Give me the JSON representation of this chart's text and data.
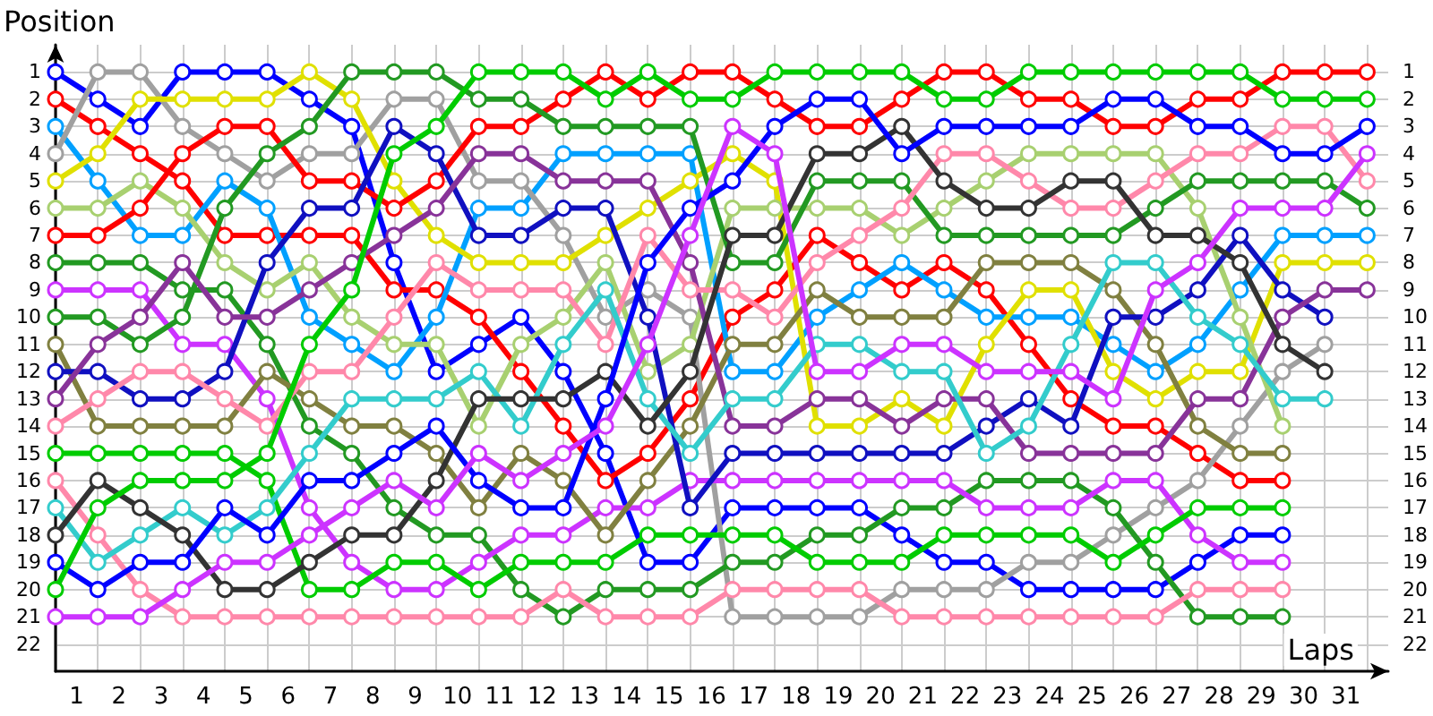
{
  "chart_data": {
    "type": "line",
    "ylabel": "Position",
    "xlabel": "Laps",
    "marker": "circle",
    "grid": true,
    "x": [
      0,
      1,
      2,
      3,
      4,
      5,
      6,
      7,
      8,
      9,
      10,
      11,
      12,
      13,
      14,
      15,
      16,
      17,
      18,
      19,
      20,
      21,
      22,
      23,
      24,
      25,
      26,
      27,
      28,
      29,
      30,
      31
    ],
    "xlim": [
      0,
      31.5
    ],
    "xticks": [
      {
        "value": 0,
        "label": null
      },
      {
        "value": 0.5,
        "label": "1"
      },
      {
        "value": 1,
        "label": null
      },
      {
        "value": 1.5,
        "label": "2"
      },
      {
        "value": 2,
        "label": null
      },
      {
        "value": 2.5,
        "label": "3"
      },
      {
        "value": 3,
        "label": null
      },
      {
        "value": 3.5,
        "label": "4"
      },
      {
        "value": 4,
        "label": null
      },
      {
        "value": 4.5,
        "label": "5"
      },
      {
        "value": 5,
        "label": null
      },
      {
        "value": 5.5,
        "label": "6"
      },
      {
        "value": 6,
        "label": null
      },
      {
        "value": 6.5,
        "label": "7"
      },
      {
        "value": 7,
        "label": null
      },
      {
        "value": 7.5,
        "label": "8"
      },
      {
        "value": 8,
        "label": null
      },
      {
        "value": 8.5,
        "label": "9"
      },
      {
        "value": 9,
        "label": null
      },
      {
        "value": 9.5,
        "label": "10"
      },
      {
        "value": 10,
        "label": null
      },
      {
        "value": 10.5,
        "label": "11"
      },
      {
        "value": 11,
        "label": null
      },
      {
        "value": 11.5,
        "label": "12"
      },
      {
        "value": 12,
        "label": null
      },
      {
        "value": 12.5,
        "label": "13"
      },
      {
        "value": 13,
        "label": null
      },
      {
        "value": 13.5,
        "label": "14"
      },
      {
        "value": 14,
        "label": null
      },
      {
        "value": 14.5,
        "label": "15"
      },
      {
        "value": 15,
        "label": null
      },
      {
        "value": 15.5,
        "label": "16"
      },
      {
        "value": 16,
        "label": null
      },
      {
        "value": 16.5,
        "label": "17"
      },
      {
        "value": 17,
        "label": null
      },
      {
        "value": 17.5,
        "label": "18"
      },
      {
        "value": 18,
        "label": null
      },
      {
        "value": 18.5,
        "label": "19"
      },
      {
        "value": 19,
        "label": null
      },
      {
        "value": 19.5,
        "label": "20"
      },
      {
        "value": 20,
        "label": null
      },
      {
        "value": 20.5,
        "label": "21"
      },
      {
        "value": 21,
        "label": null
      },
      {
        "value": 21.5,
        "label": "22"
      },
      {
        "value": 22,
        "label": null
      },
      {
        "value": 22.5,
        "label": "23"
      },
      {
        "value": 23,
        "label": null
      },
      {
        "value": 23.5,
        "label": "24"
      },
      {
        "value": 24,
        "label": null
      },
      {
        "value": 24.5,
        "label": "25"
      },
      {
        "value": 25,
        "label": null
      },
      {
        "value": 25.5,
        "label": "26"
      },
      {
        "value": 26,
        "label": null
      },
      {
        "value": 26.5,
        "label": "27"
      },
      {
        "value": 27,
        "label": null
      },
      {
        "value": 27.5,
        "label": "28"
      },
      {
        "value": 28,
        "label": null
      },
      {
        "value": 28.5,
        "label": "29"
      },
      {
        "value": 29,
        "label": null
      },
      {
        "value": 29.5,
        "label": "30"
      },
      {
        "value": 30,
        "label": null
      },
      {
        "value": 30.5,
        "label": "31"
      },
      {
        "value": 31,
        "label": null
      }
    ],
    "ylim": [
      23,
      0
    ],
    "yticks": [
      1,
      2,
      3,
      4,
      5,
      6,
      7,
      8,
      9,
      10,
      11,
      12,
      13,
      14,
      15,
      16,
      17,
      18,
      19,
      20,
      21,
      22
    ],
    "y2lim": [
      23,
      0
    ],
    "y2ticks": [
      1,
      2,
      3,
      4,
      5,
      6,
      7,
      8,
      9,
      10,
      11,
      12,
      13,
      14,
      15,
      16,
      17,
      18,
      19,
      20,
      21,
      22
    ],
    "series": [
      {
        "color": "#0000ff",
        "values": [
          1,
          2,
          3,
          1,
          1,
          1,
          2,
          3,
          8,
          12,
          11,
          10,
          12,
          15,
          19,
          19,
          17,
          17,
          17,
          17,
          18,
          19,
          19,
          20,
          20,
          20,
          20,
          19,
          18,
          18,
          null,
          null
        ]
      },
      {
        "color": "#ff0000",
        "values": [
          2,
          3,
          4,
          5,
          7,
          7,
          7,
          7,
          9,
          9,
          10,
          12,
          14,
          16,
          15,
          13,
          10,
          9,
          7,
          8,
          9,
          8,
          9,
          11,
          13,
          14,
          14,
          15,
          16,
          16,
          null,
          null
        ]
      },
      {
        "color": "#00a0ff",
        "values": [
          3,
          5,
          7,
          7,
          5,
          6,
          10,
          11,
          12,
          10,
          6,
          6,
          4,
          4,
          4,
          4,
          12,
          12,
          10,
          9,
          8,
          9,
          10,
          10,
          10,
          11,
          12,
          11,
          9,
          7,
          7,
          7
        ]
      },
      {
        "color": "#a0a0a0",
        "values": [
          4,
          1,
          1,
          3,
          4,
          5,
          4,
          4,
          2,
          2,
          5,
          5,
          7,
          10,
          9,
          10,
          21,
          21,
          21,
          21,
          20,
          20,
          20,
          19,
          19,
          18,
          17,
          16,
          14,
          12,
          11,
          null
        ]
      },
      {
        "color": "#e0e000",
        "values": [
          5,
          4,
          2,
          2,
          2,
          2,
          1,
          2,
          5,
          7,
          8,
          8,
          8,
          7,
          6,
          5,
          4,
          5,
          14,
          14,
          13,
          14,
          11,
          9,
          9,
          12,
          13,
          12,
          12,
          8,
          8,
          8
        ]
      },
      {
        "color": "#a8d070",
        "values": [
          6,
          6,
          5,
          6,
          8,
          9,
          8,
          10,
          11,
          11,
          14,
          11,
          10,
          8,
          12,
          11,
          6,
          6,
          6,
          6,
          7,
          6,
          5,
          4,
          4,
          4,
          4,
          6,
          10,
          14,
          null,
          null
        ]
      },
      {
        "color": "#ff0000",
        "values": [
          7,
          7,
          6,
          4,
          3,
          3,
          5,
          5,
          6,
          5,
          3,
          3,
          2,
          1,
          2,
          1,
          1,
          2,
          3,
          3,
          2,
          1,
          1,
          2,
          2,
          3,
          3,
          2,
          2,
          1,
          1,
          1
        ]
      },
      {
        "color": "#229922",
        "values": [
          8,
          8,
          8,
          9,
          9,
          11,
          14,
          15,
          17,
          18,
          18,
          20,
          21,
          20,
          20,
          20,
          19,
          19,
          18,
          18,
          17,
          17,
          16,
          16,
          16,
          17,
          19,
          21,
          21,
          21,
          null,
          null
        ]
      },
      {
        "color": "#cc33ff",
        "values": [
          9,
          9,
          9,
          11,
          11,
          13,
          17,
          19,
          20,
          20,
          19,
          18,
          18,
          17,
          17,
          16,
          16,
          16,
          16,
          16,
          16,
          16,
          17,
          17,
          17,
          16,
          16,
          18,
          19,
          19,
          null,
          null
        ]
      },
      {
        "color": "#229922",
        "values": [
          10,
          10,
          11,
          10,
          6,
          4,
          3,
          1,
          1,
          1,
          2,
          2,
          3,
          3,
          3,
          3,
          8,
          8,
          5,
          5,
          5,
          7,
          7,
          7,
          7,
          7,
          6,
          5,
          5,
          5,
          5,
          6
        ]
      },
      {
        "color": "#808040",
        "values": [
          11,
          14,
          14,
          14,
          14,
          12,
          13,
          14,
          14,
          15,
          17,
          15,
          16,
          18,
          16,
          14,
          11,
          11,
          9,
          10,
          10,
          10,
          8,
          8,
          8,
          9,
          11,
          14,
          15,
          15,
          null,
          null
        ]
      },
      {
        "color": "#1010c0",
        "values": [
          12,
          12,
          13,
          13,
          12,
          8,
          6,
          6,
          3,
          4,
          7,
          7,
          6,
          6,
          10,
          17,
          15,
          15,
          15,
          15,
          15,
          15,
          14,
          13,
          14,
          10,
          10,
          9,
          7,
          9,
          10,
          null
        ]
      },
      {
        "color": "#883399",
        "values": [
          13,
          11,
          10,
          8,
          10,
          10,
          9,
          8,
          7,
          6,
          4,
          4,
          5,
          5,
          5,
          8,
          14,
          14,
          13,
          13,
          14,
          13,
          13,
          15,
          15,
          15,
          15,
          13,
          13,
          10,
          9,
          9
        ]
      },
      {
        "color": "#ff88aa",
        "values": [
          14,
          13,
          12,
          12,
          13,
          14,
          12,
          12,
          10,
          8,
          9,
          9,
          9,
          11,
          7,
          9,
          9,
          10,
          8,
          7,
          6,
          4,
          4,
          5,
          6,
          6,
          5,
          4,
          4,
          3,
          3,
          5
        ]
      },
      {
        "color": "#00cc00",
        "values": [
          15,
          15,
          15,
          15,
          15,
          16,
          20,
          20,
          19,
          19,
          20,
          19,
          19,
          19,
          18,
          18,
          18,
          18,
          19,
          19,
          19,
          18,
          18,
          18,
          18,
          19,
          18,
          17,
          17,
          17,
          null,
          null
        ]
      },
      {
        "color": "#ff88aa",
        "values": [
          16,
          18,
          20,
          21,
          21,
          21,
          21,
          21,
          21,
          21,
          21,
          21,
          20,
          21,
          21,
          21,
          20,
          20,
          20,
          20,
          21,
          21,
          21,
          21,
          21,
          21,
          21,
          20,
          20,
          20,
          null,
          null
        ]
      },
      {
        "color": "#33cccc",
        "values": [
          17,
          19,
          18,
          17,
          18,
          17,
          15,
          13,
          13,
          13,
          12,
          14,
          11,
          9,
          13,
          15,
          13,
          13,
          11,
          11,
          12,
          12,
          15,
          14,
          11,
          8,
          8,
          10,
          11,
          13,
          13,
          null
        ]
      },
      {
        "color": "#333333",
        "values": [
          18,
          16,
          17,
          18,
          20,
          20,
          19,
          18,
          18,
          16,
          13,
          13,
          13,
          12,
          14,
          12,
          7,
          7,
          4,
          4,
          3,
          5,
          6,
          6,
          5,
          5,
          7,
          7,
          8,
          11,
          12,
          null
        ]
      },
      {
        "color": "#0000ff",
        "values": [
          19,
          20,
          19,
          19,
          17,
          18,
          16,
          16,
          15,
          14,
          16,
          17,
          17,
          13,
          8,
          6,
          5,
          3,
          2,
          2,
          4,
          3,
          3,
          3,
          3,
          2,
          2,
          3,
          3,
          4,
          4,
          3
        ]
      },
      {
        "color": "#00cc00",
        "values": [
          20,
          17,
          16,
          16,
          16,
          15,
          11,
          9,
          4,
          3,
          1,
          1,
          1,
          2,
          1,
          2,
          2,
          1,
          1,
          1,
          1,
          2,
          2,
          1,
          1,
          1,
          1,
          1,
          1,
          2,
          2,
          2
        ]
      },
      {
        "color": "#cc33ff",
        "values": [
          21,
          21,
          21,
          20,
          19,
          19,
          18,
          17,
          16,
          17,
          15,
          16,
          15,
          14,
          11,
          7,
          3,
          4,
          12,
          12,
          11,
          11,
          12,
          12,
          12,
          13,
          9,
          8,
          6,
          6,
          6,
          4
        ]
      }
    ]
  }
}
